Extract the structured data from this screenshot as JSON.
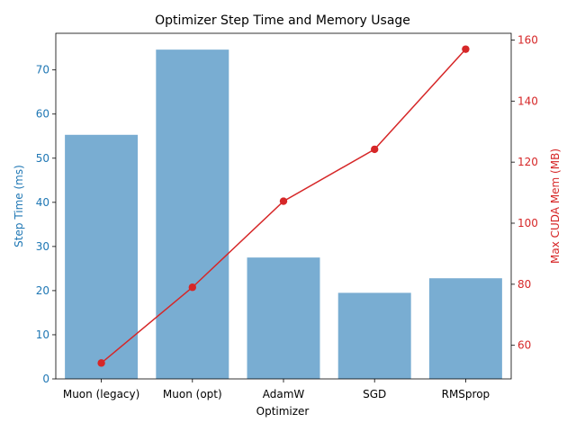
{
  "chart_data": {
    "type": "bar+line",
    "title": "Optimizer Step Time and Memory Usage",
    "xlabel": "Optimizer",
    "categories": [
      "Muon (legacy)",
      "Muon (opt)",
      "AdamW",
      "SGD",
      "RMSprop"
    ],
    "series": [
      {
        "axis": "left",
        "type": "bar",
        "color": "#1f77b4",
        "values": [
          55.3,
          74.6,
          27.5,
          19.5,
          22.8
        ]
      },
      {
        "axis": "right",
        "type": "line",
        "color": "#d62728",
        "values": [
          54.2,
          79.0,
          107.2,
          124.2,
          157.0
        ]
      }
    ],
    "y_left": {
      "label": "Step Time (ms)",
      "range": [
        0,
        78.3
      ],
      "ticks": [
        "0",
        "10",
        "20",
        "30",
        "40",
        "50",
        "60",
        "70"
      ],
      "color": "#1f77b4"
    },
    "y_right": {
      "label": "Max CUDA Mem (MB)",
      "range": [
        49.0,
        162.2
      ],
      "ticks": [
        "60",
        "80",
        "100",
        "120",
        "140",
        "160"
      ],
      "color": "#d62728"
    },
    "grid": false,
    "legend": "none"
  }
}
